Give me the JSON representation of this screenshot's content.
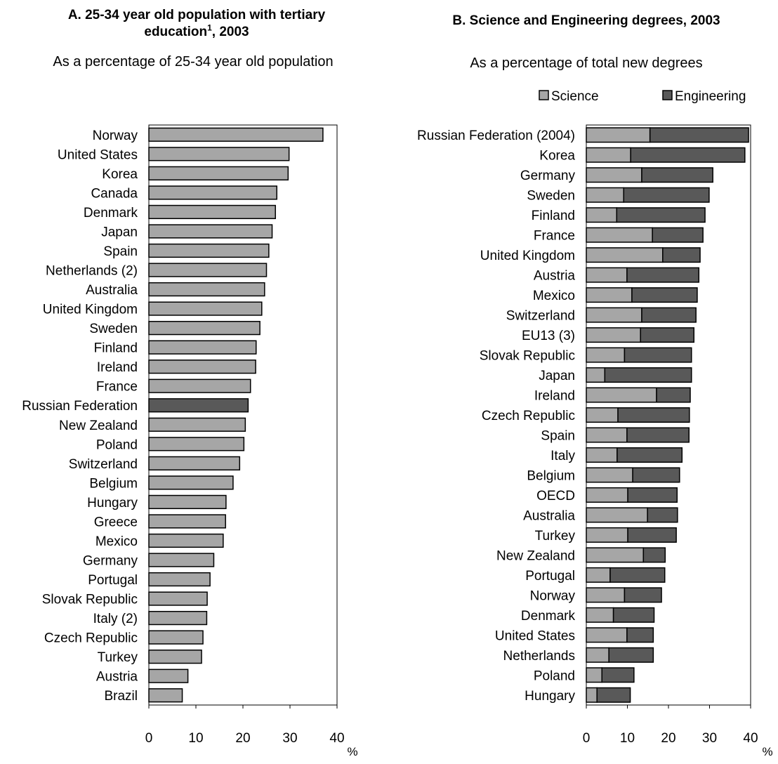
{
  "chart_data": [
    {
      "type": "bar",
      "orientation": "horizontal",
      "title": "A. 25-34 year old population with tertiary education",
      "title_superscript": "1",
      "title_suffix": ", 2003",
      "subtitle": "As a percentage of 25-34 year old population",
      "xlabel": "%",
      "xlim": [
        0,
        40
      ],
      "xticks": [
        0,
        10,
        20,
        30,
        40
      ],
      "grid": false,
      "categories": [
        "Norway",
        "United States",
        "Korea",
        "Canada",
        "Denmark",
        "Japan",
        "Spain",
        "Netherlands (2)",
        "Australia",
        "United Kingdom",
        "Sweden",
        "Finland",
        "Ireland",
        "France",
        "Russian Federation",
        "New Zealand",
        "Poland",
        "Switzerland",
        "Belgium",
        "Hungary",
        "Greece",
        "Mexico",
        "Germany",
        "Portugal",
        "Slovak Republic",
        "Italy (2)",
        "Czech Republic",
        "Turkey",
        "Austria",
        "Brazil"
      ],
      "values": [
        37.0,
        29.8,
        29.6,
        27.2,
        26.9,
        26.2,
        25.5,
        25.0,
        24.6,
        24.0,
        23.6,
        22.8,
        22.7,
        21.6,
        21.1,
        20.5,
        20.2,
        19.3,
        17.9,
        16.4,
        16.3,
        15.8,
        13.8,
        13.0,
        12.4,
        12.3,
        11.5,
        11.2,
        8.3,
        7.1
      ],
      "bar_color": "#a6a6a6",
      "highlight": {
        "category": "Russian Federation",
        "color": "#595959"
      }
    },
    {
      "type": "bar",
      "orientation": "horizontal",
      "stacked": true,
      "title": "B.  Science and Engineering degrees, 2003",
      "subtitle": "As a percentage of total new degrees",
      "xlabel": "%",
      "xlim": [
        0,
        40
      ],
      "xticks": [
        0,
        10,
        20,
        30,
        40
      ],
      "grid": false,
      "legend_position": "top-right",
      "categories": [
        "Russian Federation (2004)",
        "Korea",
        "Germany",
        "Sweden",
        "Finland",
        "France",
        "United Kingdom",
        "Austria",
        "Mexico",
        "Switzerland",
        "EU13 (3)",
        "Slovak Republic",
        "Japan",
        "Ireland",
        "Czech Republic",
        "Spain",
        "Italy",
        "Belgium",
        "OECD",
        "Australia",
        "Turkey",
        "New Zealand",
        "Portugal",
        "Norway",
        "Denmark",
        "United States",
        "Netherlands",
        "Poland",
        "Hungary"
      ],
      "series": [
        {
          "name": "Science",
          "color": "#a6a6a6",
          "values": [
            15.5,
            10.8,
            13.5,
            9.1,
            7.4,
            16.1,
            18.6,
            9.9,
            11.1,
            13.5,
            13.2,
            9.3,
            4.5,
            17.1,
            7.7,
            9.9,
            7.5,
            11.3,
            10.1,
            14.9,
            10.1,
            13.9,
            5.8,
            9.3,
            6.6,
            9.9,
            5.5,
            3.8,
            2.6
          ],
          "totals_note_excluded": true
        },
        {
          "name": "Engineering",
          "color": "#595959",
          "values": [
            24.0,
            27.8,
            17.3,
            20.8,
            21.5,
            12.3,
            9.1,
            17.5,
            15.9,
            13.2,
            13.0,
            16.3,
            21.1,
            8.2,
            17.4,
            15.1,
            15.8,
            11.4,
            12.0,
            7.3,
            11.8,
            5.3,
            13.3,
            9.0,
            9.9,
            6.4,
            10.8,
            7.8,
            8.1
          ]
        }
      ]
    }
  ]
}
